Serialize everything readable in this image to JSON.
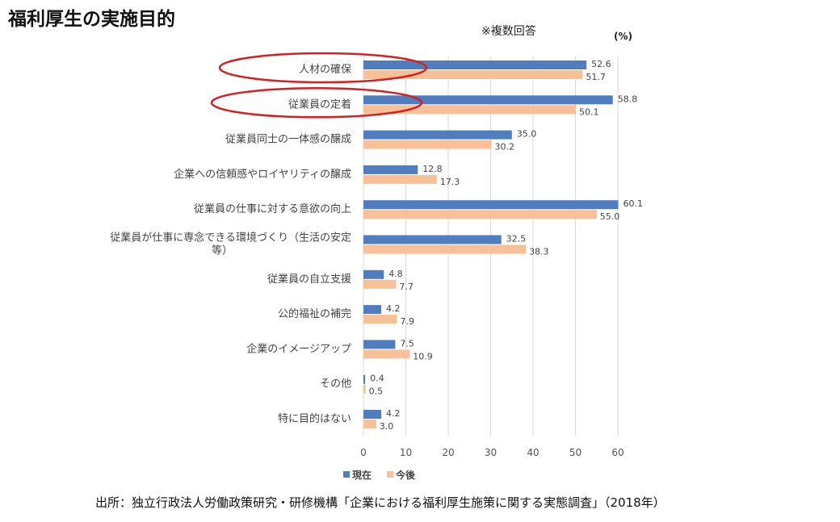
{
  "title": "福利厚生の実施目的",
  "note": "※複数回答",
  "source": "出所：独立行政法人労働政策研究・研修機構「企業における福利厚生施策に関する実態調査」（2018年）",
  "chart_data": {
    "type": "bar",
    "orientation": "horizontal",
    "unit_label": "(%)",
    "categories": [
      "人材の確保",
      "従業員の定着",
      "従業員同士の一体感の醸成",
      "企業への信頼感やロイヤリティの醸成",
      "従業員の仕事に対する意欲の向上",
      "従業員が仕事に専念できる環境づくり（生活の安定|等）",
      "従業員の自立支援",
      "公的福祉の補完",
      "企業のイメージアップ",
      "その他",
      "特に目的はない"
    ],
    "series": [
      {
        "name": "現在",
        "color": "#4f7dbd",
        "values": [
          52.6,
          58.8,
          35.0,
          12.8,
          60.1,
          32.5,
          4.8,
          4.2,
          7.5,
          0.4,
          4.2
        ]
      },
      {
        "name": "今後",
        "color": "#f8c097",
        "values": [
          51.7,
          50.1,
          30.2,
          17.3,
          55.0,
          38.3,
          7.7,
          7.9,
          10.9,
          0.5,
          3.0
        ]
      }
    ],
    "xlim": [
      0,
      60
    ],
    "xticks": [
      0,
      10,
      20,
      30,
      40,
      50,
      60
    ],
    "grid": true,
    "legend": "bottom",
    "highlighted_categories": [
      0,
      1
    ],
    "highlight_color": "#d42020"
  }
}
